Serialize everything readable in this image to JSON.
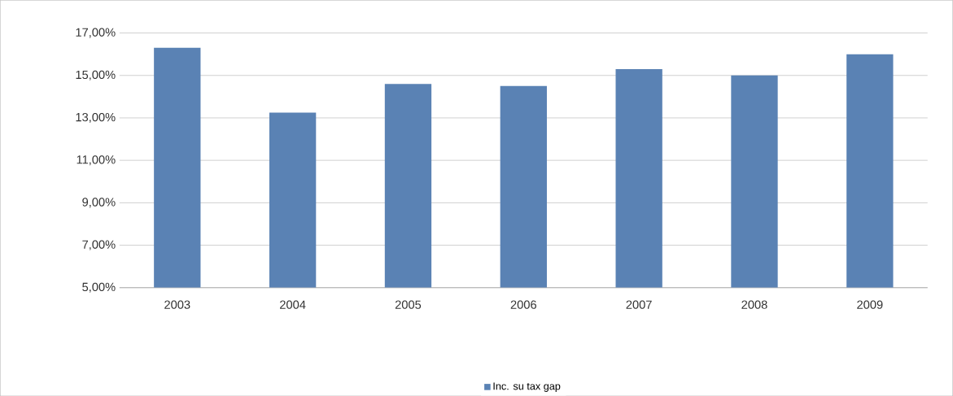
{
  "chart_data": {
    "type": "bar",
    "categories": [
      "2003",
      "2004",
      "2005",
      "2006",
      "2007",
      "2008",
      "2009"
    ],
    "series": [
      {
        "name": "Inc. su tax gap",
        "color": "#5a82b4",
        "values": [
          16.3,
          13.25,
          14.6,
          14.5,
          15.3,
          15.0,
          16.0
        ]
      }
    ],
    "ylim": [
      5,
      17
    ],
    "yticks": [
      {
        "value": 5,
        "label": "5,00%"
      },
      {
        "value": 7,
        "label": "7,00%"
      },
      {
        "value": 9,
        "label": "9,00%"
      },
      {
        "value": 11,
        "label": "11,00%"
      },
      {
        "value": 13,
        "label": "13,00%"
      },
      {
        "value": 15,
        "label": "15,00%"
      },
      {
        "value": 17,
        "label": "17,00%"
      }
    ],
    "grid": "y",
    "legend": "bottom"
  }
}
